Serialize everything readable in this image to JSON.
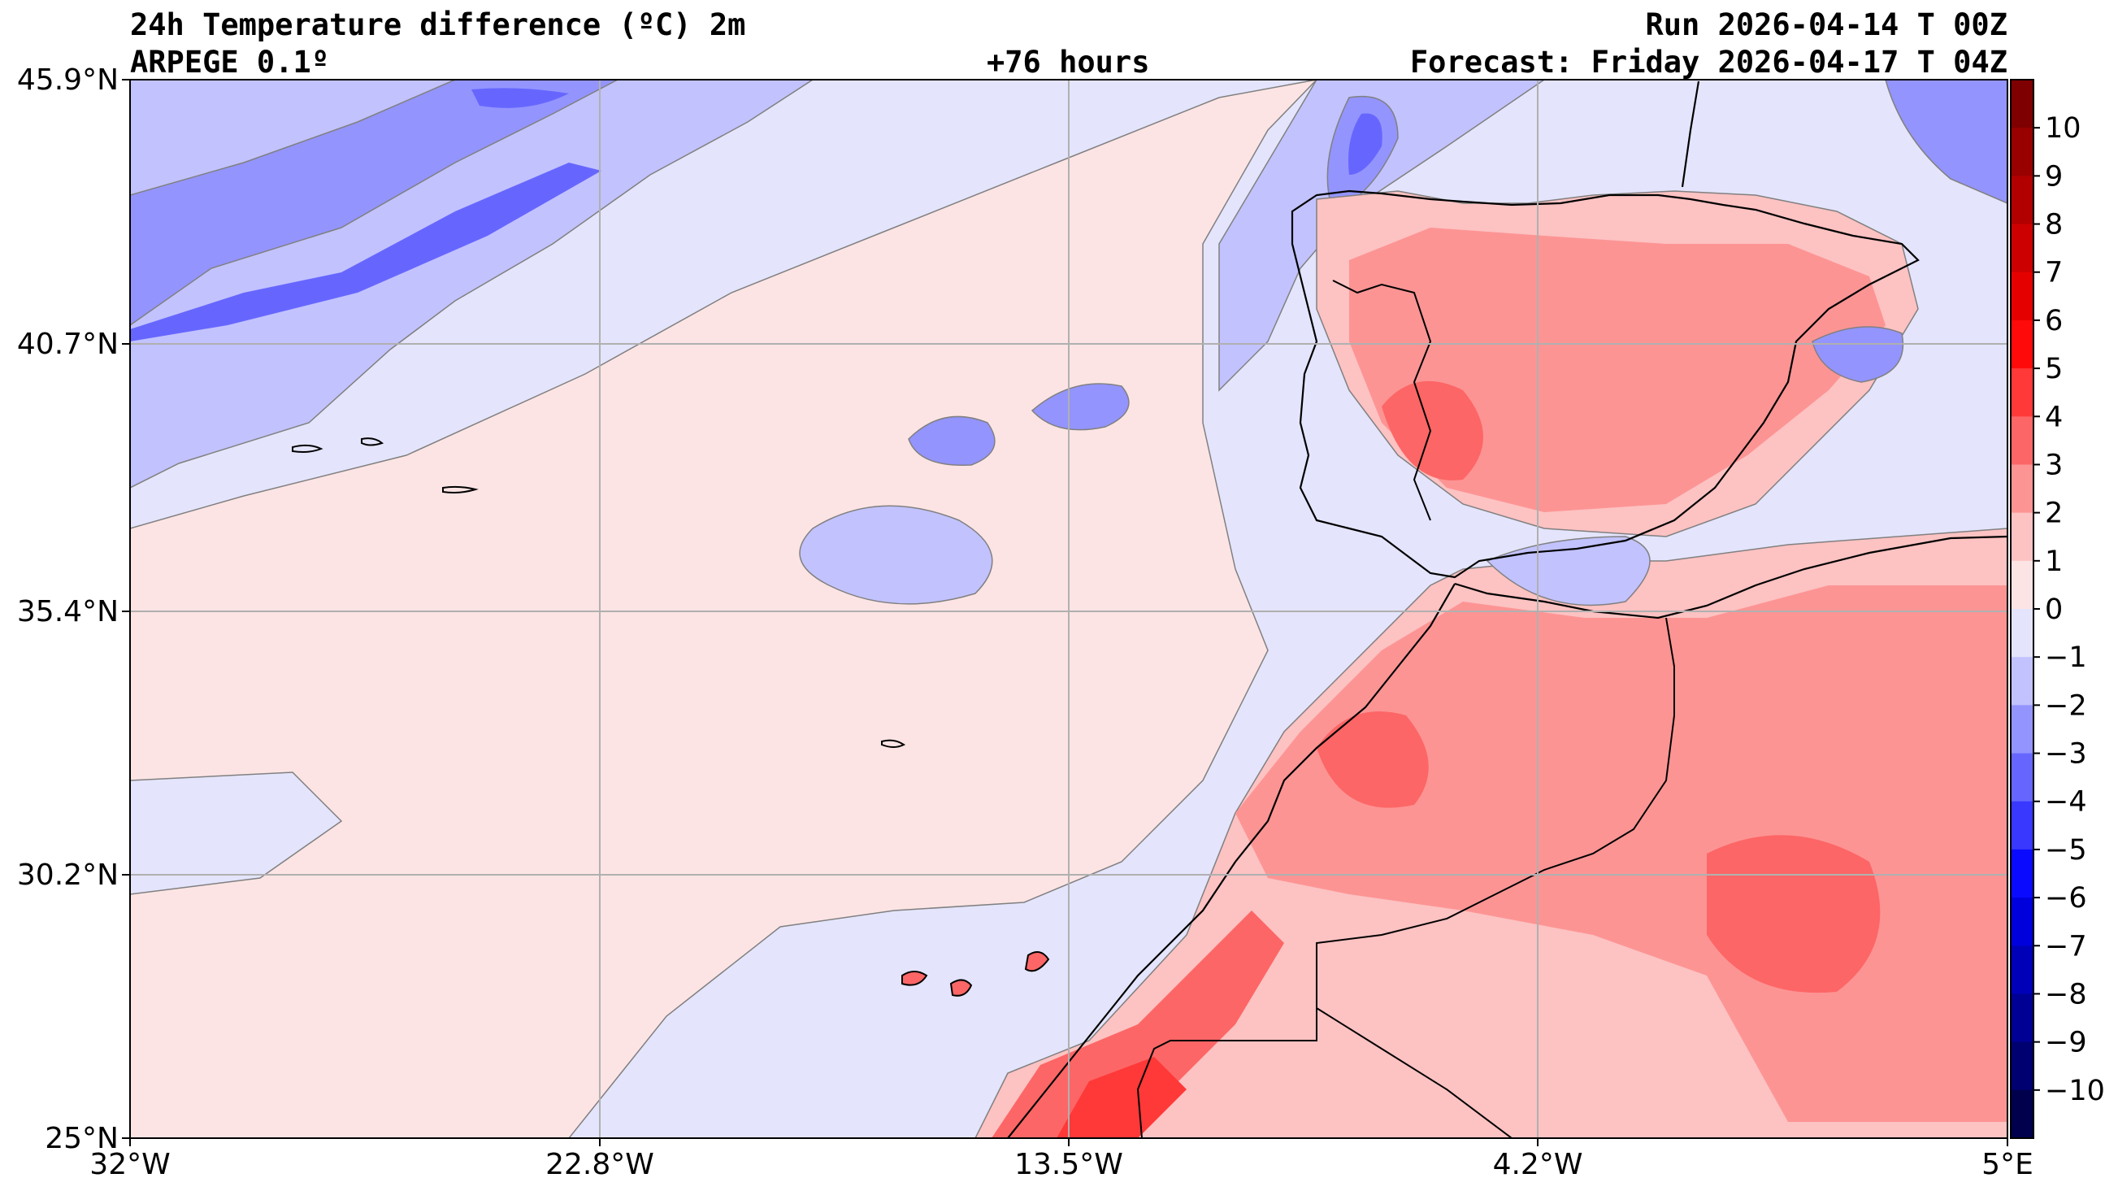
{
  "header": {
    "title": "24h Temperature difference (ºC) 2m",
    "model": "ARPEGE 0.1º",
    "lead_time": "+76 hours",
    "run": "Run 2026-04-14 T 00Z",
    "forecast": "Forecast: Friday 2026-04-17 T 04Z"
  },
  "axes": {
    "lat_labels": [
      "45.9°N",
      "40.7°N",
      "35.4°N",
      "30.2°N",
      "25°N"
    ],
    "lon_labels": [
      "32°W",
      "22.8°W",
      "13.5°W",
      "4.2°W",
      "5°E"
    ]
  },
  "colorbar": {
    "ticks": [
      "10",
      "9",
      "8",
      "7",
      "6",
      "5",
      "4",
      "3",
      "2",
      "1",
      "0",
      "−1",
      "−2",
      "−3",
      "−4",
      "−5",
      "−6",
      "−7",
      "−8",
      "−9",
      "−10"
    ],
    "colors": {
      "n10": "#00004c",
      "n9": "#000070",
      "n8": "#000094",
      "n7": "#0000b8",
      "n6": "#0000dc",
      "n5": "#0a0afe",
      "n4": "#3838fe",
      "n3": "#6666ff",
      "n2": "#9494fe",
      "n1": "#c2c2fe",
      "n0": "#e4e4fc",
      "p0": "#fde4e4",
      "p1": "#fdc2c2",
      "p2": "#fd9494",
      "p3": "#fd6666",
      "p4": "#ff3838",
      "p5": "#ff0a0a",
      "p6": "#e50000",
      "p7": "#cc0000",
      "p8": "#b20000",
      "p9": "#990000",
      "p10": "#7f0000"
    }
  },
  "colors": {
    "grid": "#b0b0b0",
    "coast": "#000000",
    "contour": "#808080"
  }
}
